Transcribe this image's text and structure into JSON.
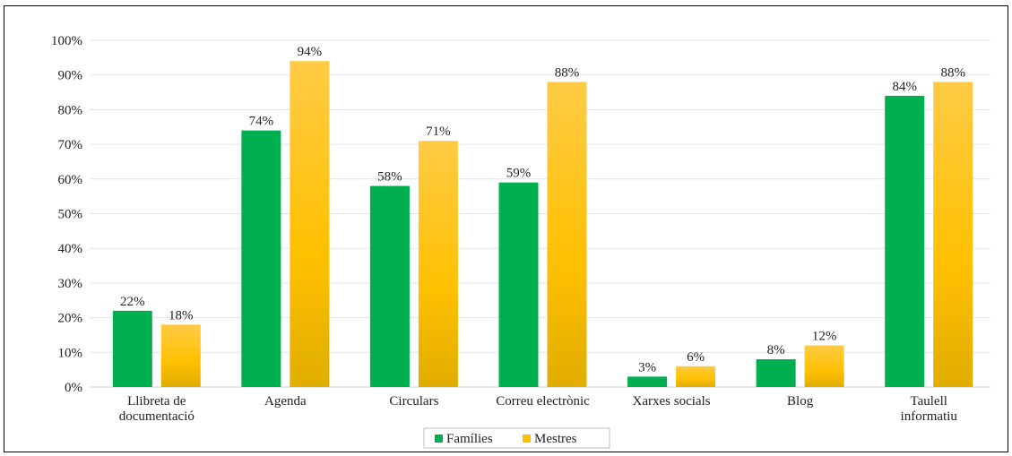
{
  "chart_data": {
    "type": "bar",
    "title": "",
    "xlabel": "",
    "ylabel": "",
    "ylim": [
      0,
      100
    ],
    "y_ticks": [
      "0%",
      "10%",
      "20%",
      "30%",
      "40%",
      "50%",
      "60%",
      "70%",
      "80%",
      "90%",
      "100%"
    ],
    "grid": true,
    "legend_position": "bottom",
    "categories": [
      [
        "Llibreta de",
        "documentació"
      ],
      [
        "Agenda"
      ],
      [
        "Circulars"
      ],
      [
        "Correu electrònic"
      ],
      [
        "Xarxes socials"
      ],
      [
        "Blog"
      ],
      [
        "Taulell",
        "informatiu"
      ]
    ],
    "series": [
      {
        "name": "Famílies",
        "color": "#00b050",
        "values": [
          22,
          74,
          58,
          59,
          3,
          8,
          84
        ],
        "labels": [
          "22%",
          "74%",
          "58%",
          "59%",
          "3%",
          "8%",
          "84%"
        ]
      },
      {
        "name": "Mestres",
        "color": "#ffc000",
        "values": [
          18,
          94,
          71,
          88,
          6,
          12,
          88
        ],
        "labels": [
          "18%",
          "94%",
          "71%",
          "88%",
          "6%",
          "12%",
          "88%"
        ]
      }
    ]
  }
}
